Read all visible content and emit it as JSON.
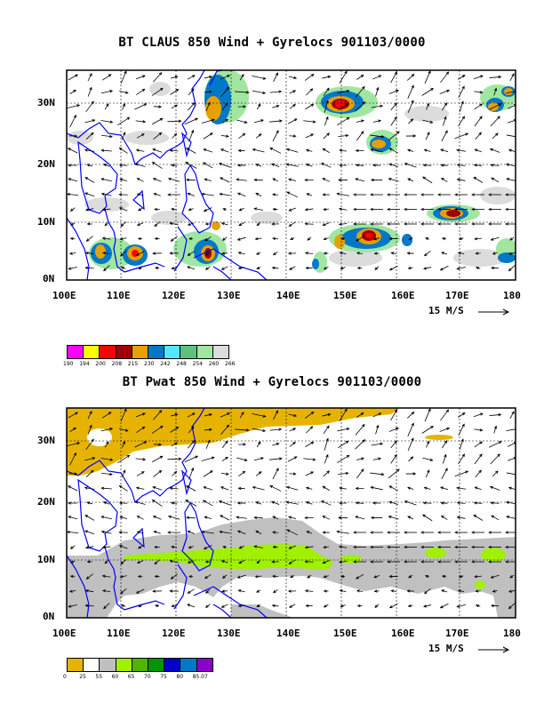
{
  "panels": [
    {
      "title": "BT CLAUS 850 Wind + Gyrelocs 901103/0000",
      "x_ticks": [
        "100E",
        "110E",
        "120E",
        "130E",
        "140E",
        "150E",
        "160E",
        "170E",
        "180"
      ],
      "y_ticks": [
        "30N",
        "20N",
        "10N",
        "0N"
      ],
      "ref_vector": "15 M/S",
      "colorbar_labels": [
        "190",
        "194",
        "200",
        "208",
        "215",
        "230",
        "242",
        "248",
        "254",
        "260",
        "266"
      ],
      "colorbar_colors": [
        "#ff00ff",
        "#ffff00",
        "#ff0000",
        "#a00000",
        "#e6a000",
        "#0078c8",
        "#55e6ff",
        "#60c080",
        "#a0e6a0",
        "#dcdcdc"
      ]
    },
    {
      "title": "BT Pwat 850 Wind + Gyrelocs 901103/0000",
      "x_ticks": [
        "100E",
        "110E",
        "120E",
        "130E",
        "140E",
        "150E",
        "160E",
        "170E",
        "180"
      ],
      "y_ticks": [
        "30N",
        "20N",
        "10N",
        "0N"
      ],
      "ref_vector": "15 M/S",
      "colorbar_labels": [
        "0",
        "25",
        "55",
        "60",
        "65",
        "70",
        "75",
        "80",
        "85.07"
      ],
      "colorbar_colors": [
        "#e6b400",
        "#ffffff",
        "#c0c0c0",
        "#a0f000",
        "#50b400",
        "#009600",
        "#0000c8",
        "#0078c8",
        "#8c00c8"
      ]
    }
  ]
}
